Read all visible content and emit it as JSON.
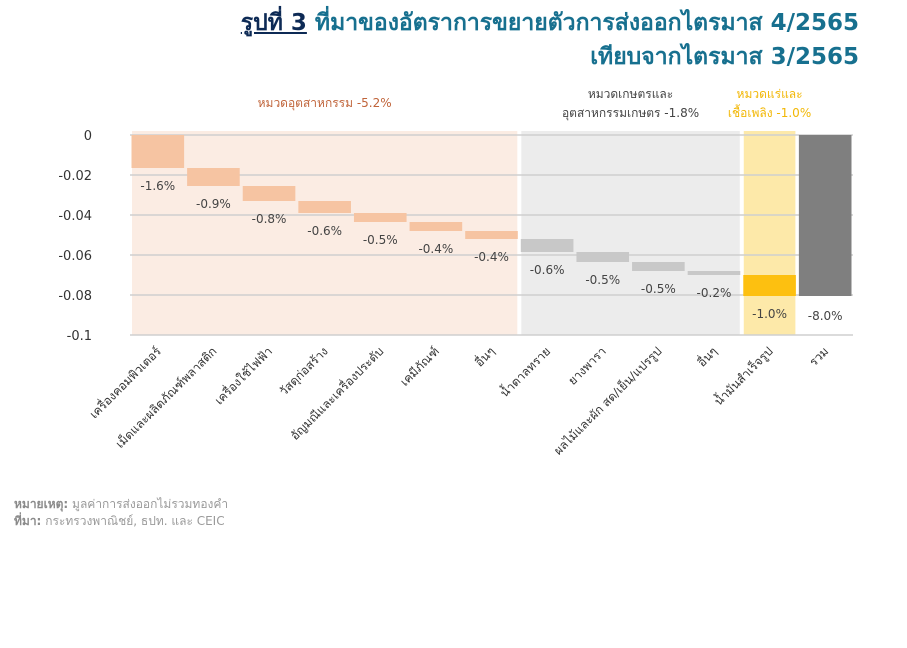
{
  "title": {
    "figure_no": "รูปที่ 3",
    "line1": "ที่มาของอัตราการขยายตัวการส่งออกไตรมาส 4/2565",
    "line2": "เทียบจากไตรมาส 3/2565"
  },
  "notes": {
    "note_label": "หมายเหตุ:",
    "note": "มูลค่าการส่งออกไม่รวมทองคำ",
    "source_label": "ที่มา:",
    "source": "กระทรวงพาณิชย์, ธปท. และ CEIC"
  },
  "chart_data": {
    "type": "bar",
    "subtype": "waterfall",
    "ylim": [
      -0.1,
      0
    ],
    "yticks": [
      "0",
      "-0.02",
      "-0.04",
      "-0.06",
      "-0.08",
      "-0.1"
    ],
    "ytick_values": [
      0,
      -0.02,
      -0.04,
      -0.06,
      -0.08,
      -0.1
    ],
    "categories": [
      "เครื่องคอมพิวเตอร์",
      "เม็ดและผลิตภัณฑ์พลาสติก",
      "เครื่องใช้ไฟฟ้า",
      "วัสดุก่อสร้าง",
      "อัญมณีและเครื่องประดับ",
      "เคมีภัณฑ์",
      "อื่นๆ",
      "น้ำตาลทราย",
      "ยางพารา",
      "ผลไม้และผัก สด/เย็น/แปรรูป",
      "อื่นๆ",
      "น้ำมันสำเร็จรูป",
      "รวม"
    ],
    "values": [
      -0.0165,
      -0.009,
      -0.0075,
      -0.006,
      -0.0045,
      -0.0045,
      -0.004,
      -0.0065,
      -0.005,
      -0.0045,
      -0.002,
      -0.0105,
      -0.0805
    ],
    "data_labels": [
      "-1.6%",
      "-0.9%",
      "-0.8%",
      "-0.6%",
      "-0.5%",
      "-0.4%",
      "-0.4%",
      "-0.6%",
      "-0.5%",
      "-0.5%",
      "-0.2%",
      "-1.0%",
      "-8.0%"
    ],
    "groups": [
      {
        "label": "หมวดอุตสาหกรรม -5.2%",
        "from": 0,
        "to": 6,
        "bg": "#fbece3",
        "bar": "#f6c4a2",
        "text": "#c0643a"
      },
      {
        "label": "หมวดเกษตรและ",
        "label2": "อุตสาหกรรมเกษตร -1.8%",
        "from": 7,
        "to": 10,
        "bg": "#ececec",
        "bar": "#c8c8c8",
        "text": "#444444"
      },
      {
        "label": "หมวดแร่และ",
        "label2": "เชื้อเพลิง -1.0%",
        "from": 11,
        "to": 11,
        "bg": "#fde9a9",
        "bar": "#fdc010",
        "text": "#f2b705"
      }
    ],
    "total_color": "#7f7f7f",
    "grid": true
  }
}
